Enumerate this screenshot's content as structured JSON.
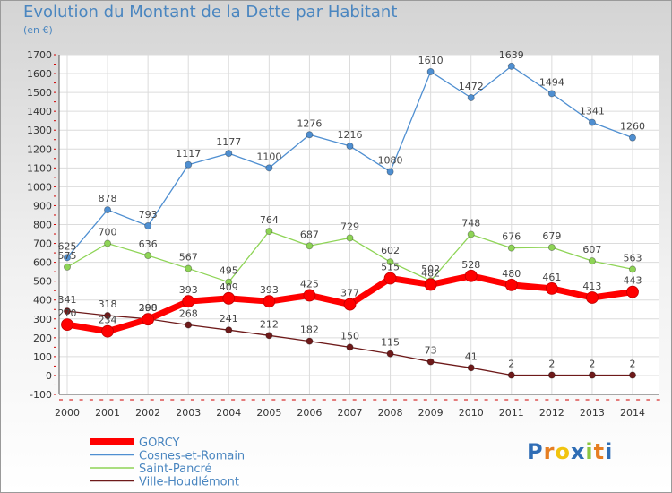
{
  "header": {
    "title": "Evolution du Montant de la Dette par Habitant",
    "unit": "(en €)"
  },
  "chart_data": {
    "type": "line",
    "title": "Evolution du Montant de la Dette par Habitant",
    "ylabel": "(en €)",
    "xlabel": "",
    "ylim": [
      -100,
      1700
    ],
    "yticks": [
      -100,
      0,
      100,
      200,
      300,
      400,
      500,
      600,
      700,
      800,
      900,
      1000,
      1100,
      1200,
      1300,
      1400,
      1500,
      1600,
      1700
    ],
    "x": [
      "2000",
      "2001",
      "2002",
      "2003",
      "2004",
      "2005",
      "2006",
      "2007",
      "2008",
      "2009",
      "2010",
      "2011",
      "2012",
      "2013",
      "2014"
    ],
    "grid": true,
    "legend_position": "bottom-left",
    "series": [
      {
        "name": "GORCY",
        "color": "#ff0000",
        "values": [
          270,
          234,
          298,
          393,
          409,
          393,
          425,
          377,
          515,
          482,
          528,
          480,
          461,
          413,
          443
        ]
      },
      {
        "name": "Cosnes-et-Romain",
        "color": "#4f8fd1",
        "values": [
          625,
          878,
          793,
          1117,
          1177,
          1100,
          1276,
          1216,
          1080,
          1610,
          1472,
          1639,
          1494,
          1341,
          1260
        ]
      },
      {
        "name": "Saint-Pancré",
        "color": "#8ed456",
        "values": [
          575,
          700,
          636,
          567,
          495,
          764,
          687,
          729,
          602,
          502,
          748,
          676,
          679,
          607,
          563
        ]
      },
      {
        "name": "Ville-Houdlémont",
        "color": "#6e1a1a",
        "values": [
          341,
          318,
          300,
          268,
          241,
          212,
          182,
          150,
          115,
          73,
          41,
          2,
          2,
          2,
          2
        ]
      }
    ]
  },
  "logo": {
    "letters": [
      "P",
      "r",
      "o",
      "x",
      "i",
      "t",
      "i"
    ],
    "colors": [
      "#2f6db5",
      "#e67e22",
      "#f1c40f",
      "#2f6db5",
      "#8cc63f",
      "#e67e22",
      "#2f6db5"
    ]
  }
}
